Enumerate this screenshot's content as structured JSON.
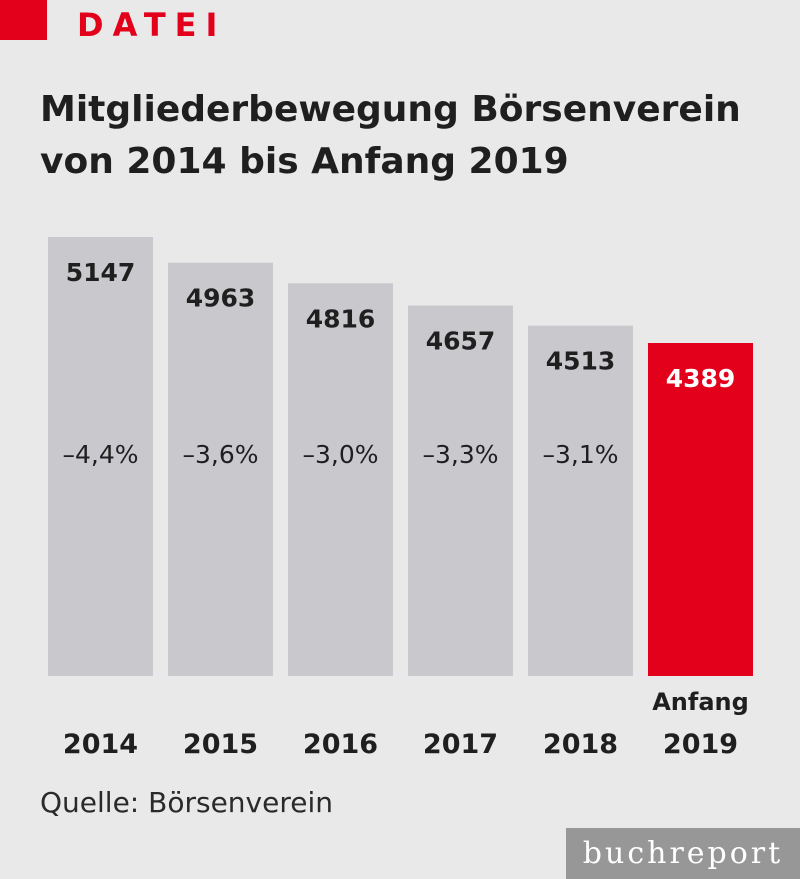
{
  "header": {
    "kicker": "DATEI"
  },
  "source": "Quelle: Börsenverein",
  "brand": "buchreport",
  "colors": {
    "accent": "#e2001a",
    "bar": "#c8c8cd",
    "background": "#e9e9e9"
  },
  "chart_data": {
    "type": "bar",
    "title": "Mitgliederbewegung Börsenverein von 2014 bis Anfang 2019",
    "categories": [
      "2014",
      "2015",
      "2016",
      "2017",
      "2018",
      "Anfang 2019"
    ],
    "values": [
      5147,
      4963,
      4816,
      4657,
      4513,
      4389
    ],
    "value_labels": [
      "5147",
      "4963",
      "4816",
      "4657",
      "4513",
      "4389"
    ],
    "changes": [
      "–4,4%",
      "–3,6%",
      "–3,0%",
      "–3,3%",
      "–3,1%",
      ""
    ],
    "highlight_index": 5,
    "grid": false,
    "legend": "none"
  }
}
